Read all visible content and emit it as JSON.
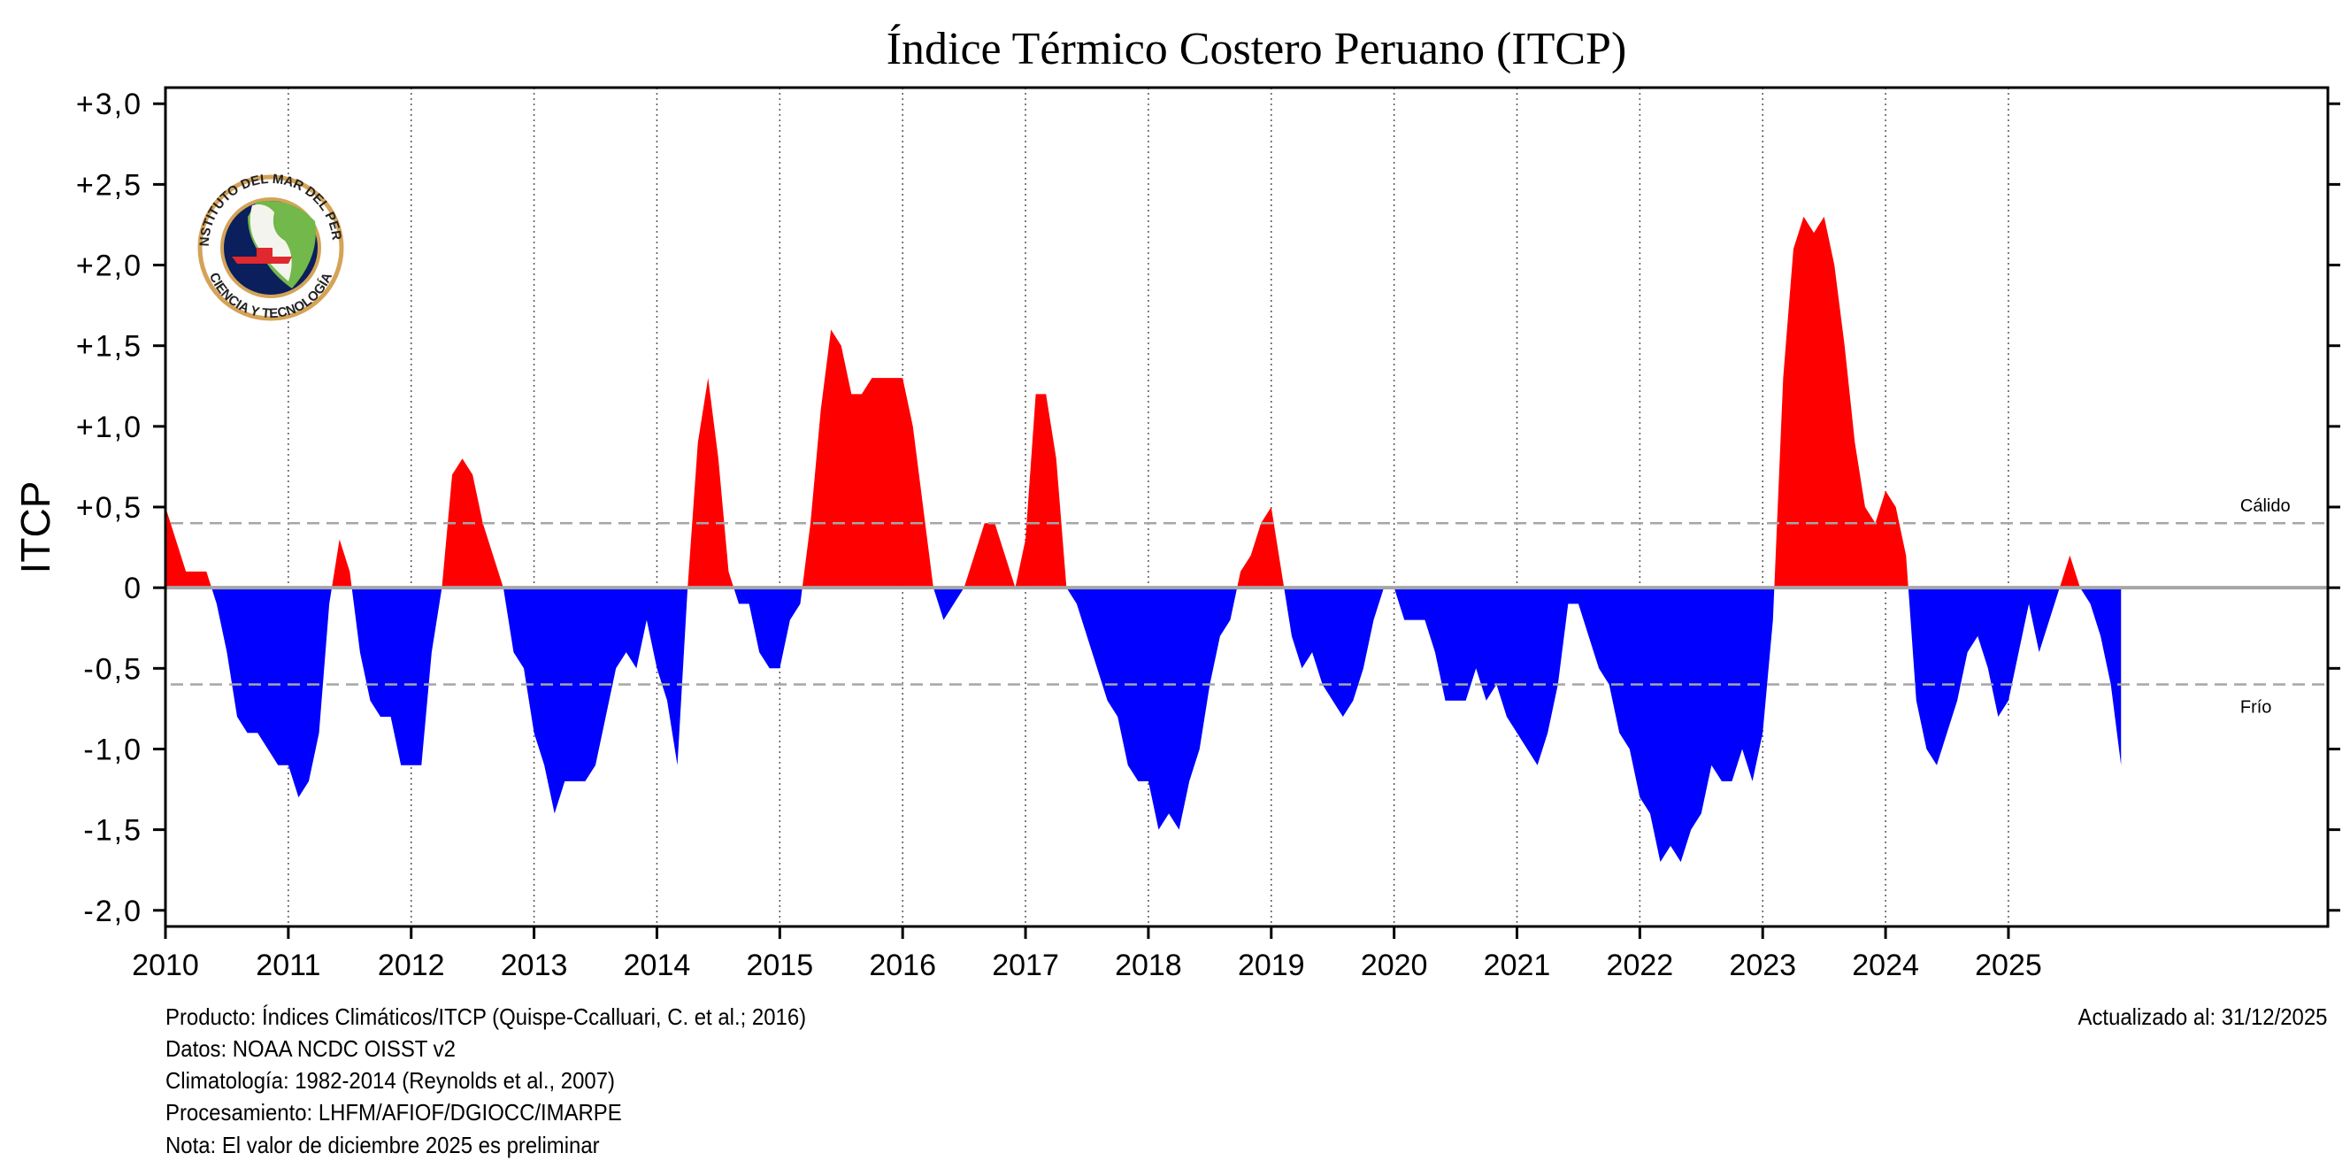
{
  "chart_data": {
    "type": "area",
    "title": "Índice Térmico Costero Peruano (ITCP)",
    "ylabel": "ITCP",
    "xlabel": "",
    "ylim": [
      -2.1,
      3.1
    ],
    "xlim": [
      2010,
      2027.6
    ],
    "y_ticks": [
      3.0,
      2.5,
      2.0,
      1.5,
      1.0,
      0.5,
      0,
      -0.5,
      -1.0,
      -1.5,
      -2.0
    ],
    "y_tick_labels": [
      "+3,0",
      "+2,5",
      "+2,0",
      "+1,5",
      "+1,0",
      "+0,5",
      "0",
      "-0,5",
      "-1,0",
      "-1,5",
      "-2,0"
    ],
    "x_tick_labels": [
      "2010",
      "2011",
      "2012",
      "2013",
      "2014",
      "2015",
      "2016",
      "2017",
      "2018",
      "2019",
      "2020",
      "2021",
      "2022",
      "2023",
      "2024",
      "2025"
    ],
    "grid": "vertical dotted at years",
    "start": "2010-01",
    "frequency": "monthly",
    "positive_color": "#ff0000",
    "negative_color": "#0000ff",
    "thresholds": [
      {
        "label": "Cálido",
        "value": 0.4
      },
      {
        "label": "Frío",
        "value": -0.6
      }
    ],
    "values": [
      0.5,
      0.3,
      0.1,
      0.1,
      0.1,
      -0.1,
      -0.4,
      -0.8,
      -0.9,
      -0.9,
      -1.0,
      -1.1,
      -1.1,
      -1.3,
      -1.2,
      -0.9,
      -0.1,
      0.3,
      0.1,
      -0.4,
      -0.7,
      -0.8,
      -0.8,
      -1.1,
      -1.1,
      -1.1,
      -0.4,
      0.0,
      0.7,
      0.8,
      0.7,
      0.4,
      0.2,
      0.0,
      -0.4,
      -0.5,
      -0.9,
      -1.1,
      -1.4,
      -1.2,
      -1.2,
      -1.2,
      -1.1,
      -0.8,
      -0.5,
      -0.4,
      -0.5,
      -0.2,
      -0.5,
      -0.7,
      -1.1,
      0.0,
      0.9,
      1.3,
      0.8,
      0.1,
      -0.1,
      -0.1,
      -0.4,
      -0.5,
      -0.5,
      -0.2,
      -0.1,
      0.4,
      1.1,
      1.6,
      1.5,
      1.2,
      1.2,
      1.3,
      1.3,
      1.3,
      1.3,
      1.0,
      0.5,
      0.0,
      -0.2,
      -0.1,
      0.0,
      0.2,
      0.4,
      0.4,
      0.2,
      0.0,
      0.3,
      1.2,
      1.2,
      0.8,
      0.0,
      -0.1,
      -0.3,
      -0.5,
      -0.7,
      -0.8,
      -1.1,
      -1.2,
      -1.2,
      -1.5,
      -1.4,
      -1.5,
      -1.2,
      -1.0,
      -0.6,
      -0.3,
      -0.2,
      0.1,
      0.2,
      0.4,
      0.5,
      0.1,
      -0.3,
      -0.5,
      -0.4,
      -0.6,
      -0.7,
      -0.8,
      -0.7,
      -0.5,
      -0.2,
      0.0,
      0.0,
      -0.2,
      -0.2,
      -0.2,
      -0.4,
      -0.7,
      -0.7,
      -0.7,
      -0.5,
      -0.7,
      -0.6,
      -0.8,
      -0.9,
      -1.0,
      -1.1,
      -0.9,
      -0.6,
      -0.1,
      -0.1,
      -0.3,
      -0.5,
      -0.6,
      -0.9,
      -1.0,
      -1.3,
      -1.4,
      -1.7,
      -1.6,
      -1.7,
      -1.5,
      -1.4,
      -1.1,
      -1.2,
      -1.2,
      -1.0,
      -1.2,
      -0.9,
      -0.2,
      1.3,
      2.1,
      2.3,
      2.2,
      2.3,
      2.0,
      1.5,
      0.9,
      0.5,
      0.4,
      0.6,
      0.5,
      0.2,
      -0.7,
      -1.0,
      -1.1,
      -0.9,
      -0.7,
      -0.4,
      -0.3,
      -0.5,
      -0.8,
      -0.7,
      -0.4,
      -0.1,
      -0.4,
      -0.2,
      0.0,
      0.2,
      0.0,
      -0.1,
      -0.3,
      -0.6,
      -1.1
    ]
  },
  "logo": {
    "top_text": "INSTITUTO DEL MAR DEL PERÚ",
    "bottom_text": "CIENCIA Y TECNOLOGÍA"
  },
  "footer": {
    "lines": [
      "Producto: Índices Climáticos/ITCP (Quispe-Ccalluari, C. et al.; 2016)",
      "Datos: NOAA NCDC OISST v2",
      "Climatología: 1982-2014 (Reynolds et al., 2007)",
      "Procesamiento: LHFM/AFIOF/DGIOCC/IMARPE",
      "Nota: El valor de diciembre 2025 es preliminar"
    ],
    "updated": "Actualizado al: 31/12/2025"
  }
}
